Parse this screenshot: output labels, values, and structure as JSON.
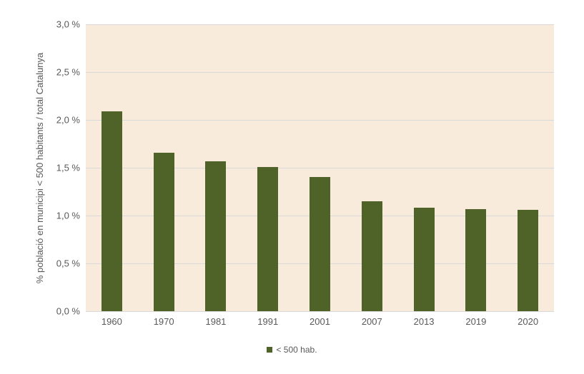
{
  "chart_data": {
    "type": "bar",
    "title": "",
    "categories": [
      "1960",
      "1970",
      "1981",
      "1991",
      "2001",
      "2007",
      "2013",
      "2019",
      "2020"
    ],
    "values": [
      2.09,
      1.66,
      1.57,
      1.51,
      1.4,
      1.15,
      1.08,
      1.07,
      1.06
    ],
    "series_name": "< 500 hab.",
    "xlabel": "",
    "ylabel": "% població en municipi < 500 habitants / total Catalunya",
    "ylim": [
      0,
      3
    ],
    "yticks": [
      {
        "value": 0.0,
        "label": "0,0 %"
      },
      {
        "value": 0.5,
        "label": "0,5 %"
      },
      {
        "value": 1.0,
        "label": "1,0 %"
      },
      {
        "value": 1.5,
        "label": "1,5 %"
      },
      {
        "value": 2.0,
        "label": "2,0 %"
      },
      {
        "value": 2.5,
        "label": "2,5 %"
      },
      {
        "value": 3.0,
        "label": "3,0 %"
      }
    ],
    "grid": true,
    "legend_position": "bottom-center",
    "colors": {
      "bar": "#4f6228",
      "plot_bg": "#f8ebdb",
      "gridline": "#d9d9d9",
      "axis_line": "#d9d9d9",
      "text": "#595959",
      "page_bg": "#ffffff"
    }
  }
}
